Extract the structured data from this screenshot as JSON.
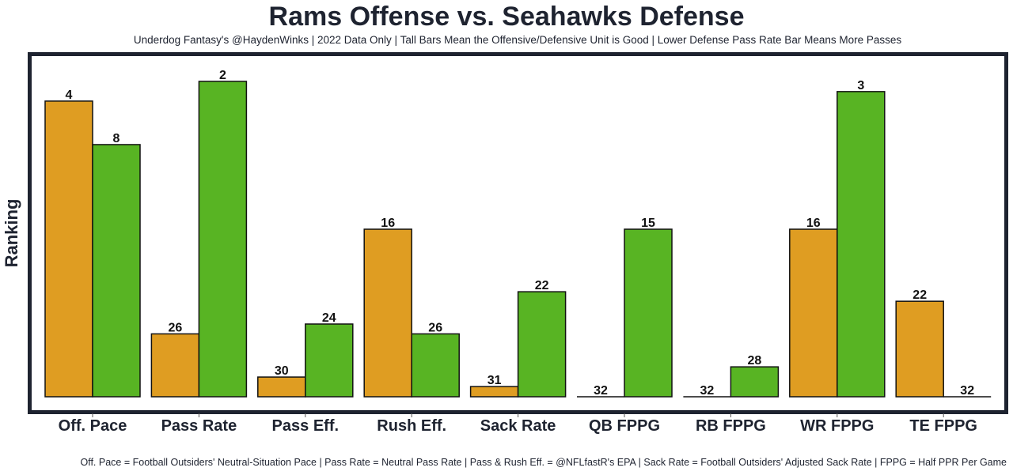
{
  "chart_data": {
    "type": "bar",
    "title": "Rams Offense vs. Seahawks Defense",
    "subtitle": "Underdog Fantasy's @HaydenWinks | 2022 Data Only | Tall Bars Mean the Offensive/Defensive Unit is Good | Lower Defense Pass Rate Bar Means More Passes",
    "xlabel": "",
    "ylabel": "Ranking",
    "caption": "Off. Pace = Football Outsiders' Neutral-Situation Pace | Pass Rate = Neutral Pass Rate | Pass & Rush Eff. = @NFLfastR's EPA | Sack Rate = Football Outsiders' Adjusted Sack Rate | FPPG = Half PPR Per Game",
    "categories": [
      "Off. Pace",
      "Pass Rate",
      "Pass Eff.",
      "Rush Eff.",
      "Sack Rate",
      "QB FPPG",
      "RB FPPG",
      "WR FPPG",
      "TE FPPG"
    ],
    "ylim": [
      0,
      1
    ],
    "grid": false,
    "legend": "none",
    "series": [
      {
        "name": "Rams Offense",
        "color": "#df9d22",
        "ranks": [
          4,
          26,
          30,
          16,
          31,
          32,
          32,
          16,
          22
        ],
        "relative_height": [
          0.87,
          0.185,
          0.058,
          0.493,
          0.03,
          0.0,
          0.0,
          0.493,
          0.281
        ]
      },
      {
        "name": "Seahawks Defense",
        "color": "#58b423",
        "ranks": [
          8,
          2,
          24,
          26,
          22,
          15,
          28,
          3,
          32
        ],
        "relative_height": [
          0.742,
          0.928,
          0.214,
          0.185,
          0.309,
          0.493,
          0.088,
          0.898,
          0.0
        ]
      }
    ]
  }
}
